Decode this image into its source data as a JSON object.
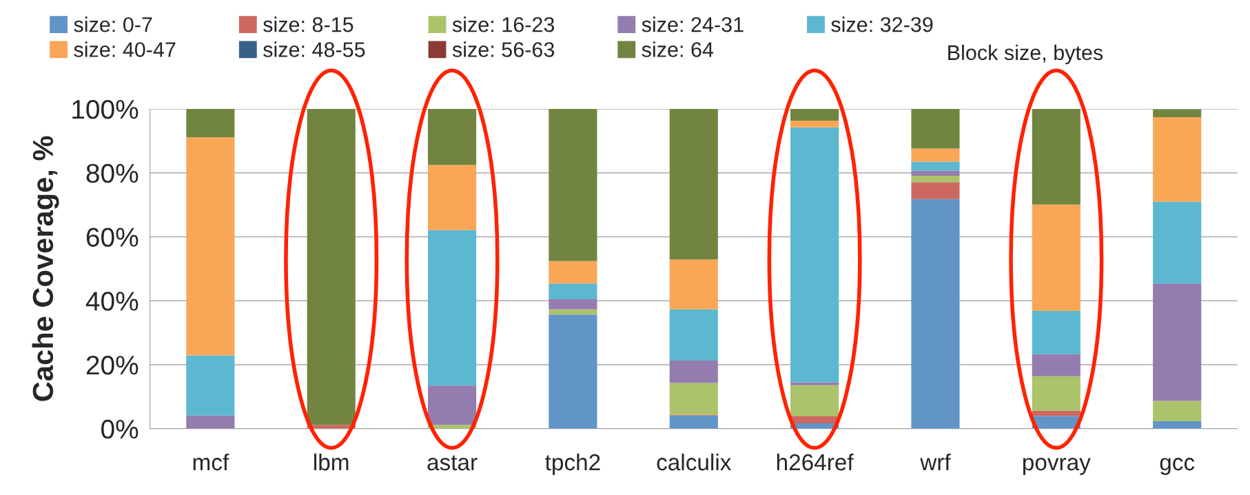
{
  "chart_data": {
    "type": "bar",
    "stacked": true,
    "ylabel": "Cache Coverage, %",
    "legend_title": "Block size, bytes",
    "legend": "top",
    "categories": [
      "mcf",
      "lbm",
      "astar",
      "tpch2",
      "calculix",
      "h264ref",
      "wrf",
      "povray",
      "gcc"
    ],
    "series": [
      {
        "name": "size: 0-7",
        "color": "#6194c7",
        "values": [
          0,
          0,
          0,
          35.7,
          4.1,
          1.7,
          71.8,
          4.0,
          2.3
        ]
      },
      {
        "name": "size: 8-15",
        "color": "#cd6861",
        "values": [
          0,
          1.2,
          0,
          0,
          0.3,
          2.3,
          5.3,
          1.6,
          null
        ]
      },
      {
        "name": "size: 16-23",
        "color": "#abc36b",
        "values": [
          0,
          0,
          1.2,
          1.6,
          9.9,
          9.6,
          2.0,
          10.8,
          6.4
        ]
      },
      {
        "name": "size: 24-31",
        "color": "#947caf",
        "values": [
          4.1,
          0,
          12.3,
          3.2,
          7.0,
          0.9,
          1.6,
          6.9,
          36.7
        ]
      },
      {
        "name": "size: 32-39",
        "color": "#5cb7d0",
        "values": [
          18.8,
          0,
          48.6,
          4.9,
          16.0,
          79.7,
          2.8,
          13.5,
          25.6
        ]
      },
      {
        "name": "size: 40-47",
        "color": "#f9a757",
        "values": [
          68.2,
          0,
          20.4,
          7.0,
          15.6,
          2.1,
          4.1,
          33.3,
          26.4
        ]
      },
      {
        "name": "size: 48-55",
        "color": "#386188",
        "values": [
          0,
          0,
          0,
          0,
          0,
          0,
          0,
          0,
          0
        ]
      },
      {
        "name": "size: 56-63",
        "color": "#8b3a35",
        "values": [
          0,
          0,
          0,
          0,
          0,
          0,
          0,
          0,
          0
        ]
      },
      {
        "name": "size: 64",
        "color": "#728540",
        "values": [
          8.9,
          98.8,
          17.5,
          47.6,
          47.1,
          3.7,
          12.4,
          29.9,
          2.5
        ]
      }
    ],
    "ylim": [
      0,
      100
    ],
    "yticks": [
      {
        "value": 0,
        "label": "0%"
      },
      {
        "value": 20,
        "label": "20%"
      },
      {
        "value": 40,
        "label": "40%"
      },
      {
        "value": 60,
        "label": "60%"
      },
      {
        "value": 80,
        "label": "80%"
      },
      {
        "value": 100,
        "label": "100%"
      }
    ],
    "grid": "y"
  }
}
